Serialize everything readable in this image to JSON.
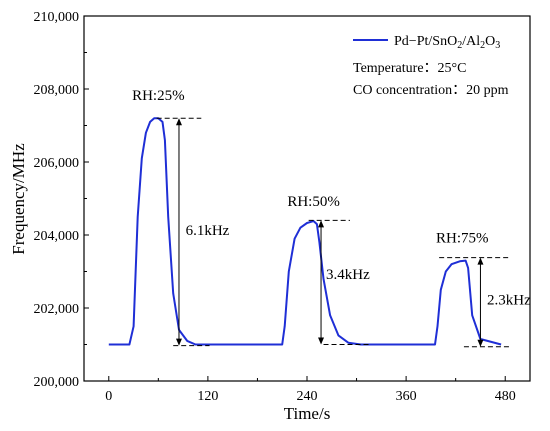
{
  "chart_data": {
    "type": "line",
    "xlabel": "Time/s",
    "ylabel": "Frequency/MHz",
    "xlim": [
      -30,
      510
    ],
    "ylim": [
      200000,
      210000
    ],
    "xticks": [
      0,
      120,
      240,
      360,
      480
    ],
    "xtick_labels": [
      "0",
      "120",
      "240",
      "360",
      "480"
    ],
    "yticks": [
      200000,
      202000,
      204000,
      206000,
      208000,
      210000
    ],
    "ytick_labels": [
      "200,000",
      "202,000",
      "204,000",
      "206,000",
      "208,000",
      "210,000"
    ],
    "grid": false,
    "legend_position": "top-right",
    "color": "#1f2fd6",
    "series": [
      {
        "name": "Pd−Pt/SnO₂/Al₂O₃",
        "x": [
          0,
          25,
          30,
          35,
          40,
          45,
          50,
          55,
          60,
          65,
          68,
          72,
          78,
          85,
          95,
          105,
          120,
          185,
          210,
          213,
          218,
          225,
          232,
          240,
          248,
          252,
          255,
          260,
          268,
          278,
          290,
          305,
          370,
          395,
          398,
          402,
          408,
          415,
          425,
          432,
          435,
          440,
          450,
          475
        ],
        "y": [
          201000,
          201000,
          201500,
          204500,
          206100,
          206800,
          207100,
          207200,
          207200,
          207100,
          206600,
          204500,
          202400,
          201400,
          201100,
          201000,
          201000,
          201000,
          201000,
          201500,
          203000,
          203900,
          204200,
          204330,
          204380,
          204300,
          203800,
          202800,
          201800,
          201250,
          201050,
          201000,
          201000,
          201000,
          201500,
          202500,
          203000,
          203200,
          203280,
          203300,
          203100,
          201800,
          201150,
          201000
        ]
      }
    ],
    "annotations": [
      {
        "label": "RH:25%",
        "delta": "6.1kHz"
      },
      {
        "label": "RH:50%",
        "delta": "3.4kHz"
      },
      {
        "label": "RH:75%",
        "delta": "2.3kHz"
      }
    ],
    "notes": [
      "Temperature：25°C",
      "CO concentration：20 ppm"
    ]
  }
}
